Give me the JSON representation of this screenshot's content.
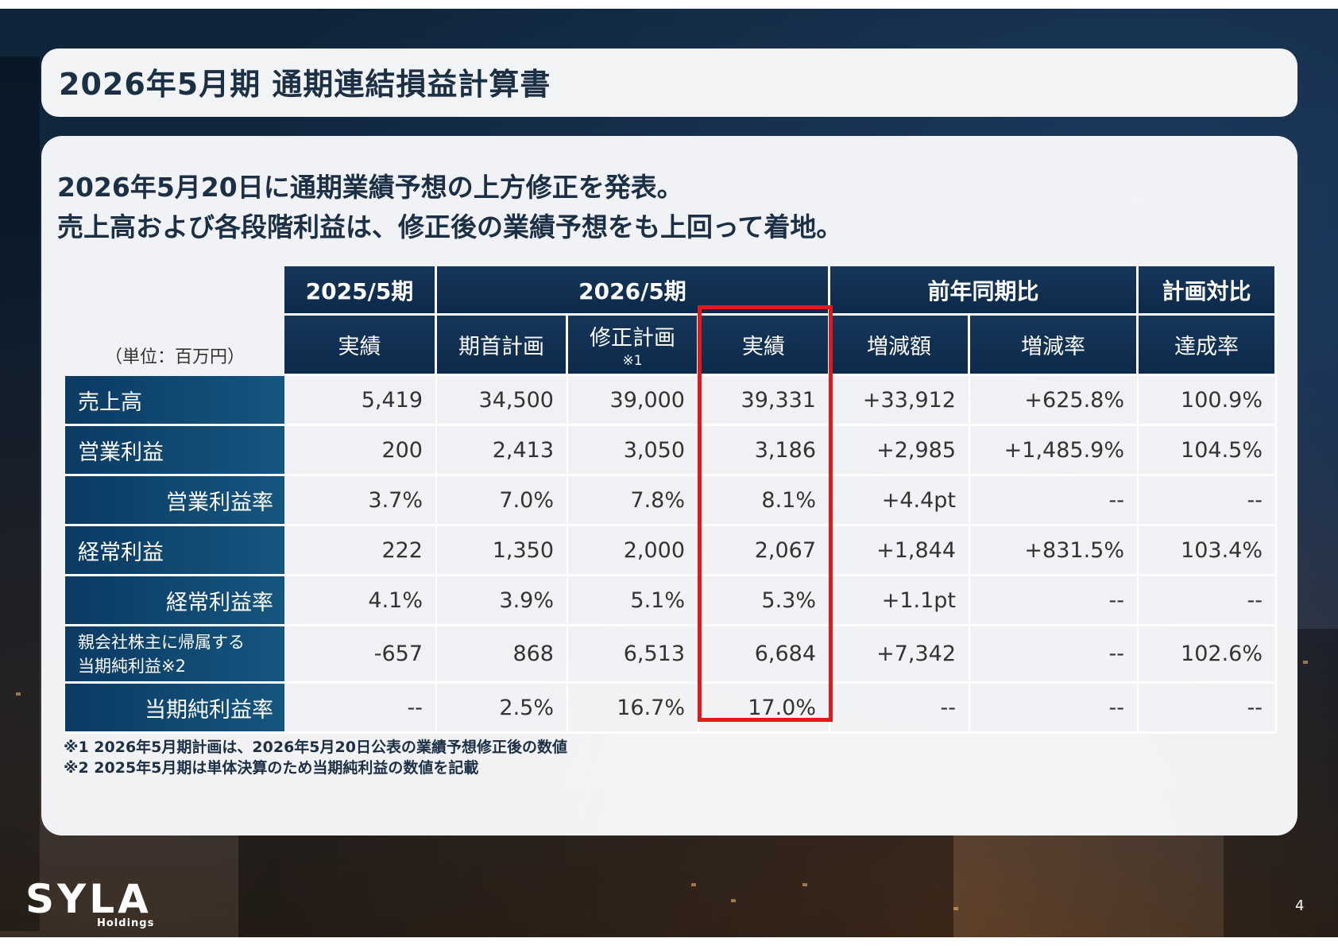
{
  "title": "2026年5月期 通期連結損益計算書",
  "headline": {
    "line1": "2026年5月20日に通期業績予想の上方修正を発表。",
    "line2": "売上高および各段階利益は、修正後の業績予想をも上回って着地。"
  },
  "table": {
    "unit": "（単位：百万円）",
    "groups": {
      "fy2025": "2025/5期",
      "fy2026": "2026/5期",
      "yoy": "前年同期比",
      "plan": "計画対比"
    },
    "subheaders": {
      "actual_2025": "実績",
      "initial_plan": "期首計画",
      "revised_plan": "修正計画",
      "revised_plan_note": "※1",
      "actual_2026": "実績",
      "change_amount": "増減額",
      "change_rate": "増減率",
      "achievement": "達成率"
    },
    "rows": [
      {
        "label": "売上高",
        "cells": [
          "5,419",
          "34,500",
          "39,000",
          "39,331",
          "+33,912",
          "+625.8%",
          "100.9%"
        ]
      },
      {
        "label": "営業利益",
        "cells": [
          "200",
          "2,413",
          "3,050",
          "3,186",
          "+2,985",
          "+1,485.9%",
          "104.5%"
        ]
      },
      {
        "label": "営業利益率",
        "cells": [
          "3.7%",
          "7.0%",
          "7.8%",
          "8.1%",
          "+4.4pt",
          "--",
          "--"
        ]
      },
      {
        "label": "経常利益",
        "cells": [
          "222",
          "1,350",
          "2,000",
          "2,067",
          "+1,844",
          "+831.5%",
          "103.4%"
        ]
      },
      {
        "label": "経常利益率",
        "cells": [
          "4.1%",
          "3.9%",
          "5.1%",
          "5.3%",
          "+1.1pt",
          "--",
          "--"
        ]
      },
      {
        "label_line1": "親会社株主に帰属する",
        "label_line2": "当期純利益※2",
        "cells": [
          "-657",
          "868",
          "6,513",
          "6,684",
          "+7,342",
          "--",
          "102.6%"
        ]
      },
      {
        "label": "当期純利益率",
        "cells": [
          "--",
          "2.5%",
          "16.7%",
          "17.0%",
          "--",
          "--",
          "--"
        ]
      }
    ]
  },
  "notes": {
    "note1": "※1 2026年5月期計画は、2026年5月20日公表の業績予想修正後の数値",
    "note2": "※2 2025年5月期は単体決算のため当期純利益の数値を記載"
  },
  "logo": {
    "main": "SYLA",
    "sub": "Holdings"
  },
  "page_number": "4",
  "colors": {
    "header_navy": "#0c2a4a",
    "row_label_blue": "#0b3a63",
    "highlight_red": "#e01a1a",
    "title_text": "#1b2f45"
  }
}
